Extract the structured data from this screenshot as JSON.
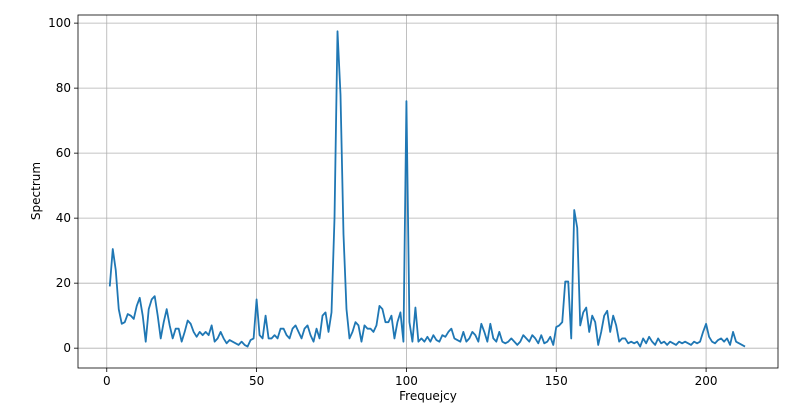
{
  "chart_data": {
    "type": "line",
    "xlabel": "Frequejcy",
    "ylabel": "Spectrum",
    "x": [
      1,
      2,
      3,
      4,
      5,
      6,
      7,
      8,
      9,
      10,
      11,
      12,
      13,
      14,
      15,
      16,
      17,
      18,
      19,
      20,
      21,
      22,
      23,
      24,
      25,
      26,
      27,
      28,
      29,
      30,
      31,
      32,
      33,
      34,
      35,
      36,
      37,
      38,
      39,
      40,
      41,
      42,
      43,
      44,
      45,
      46,
      47,
      48,
      49,
      50,
      51,
      52,
      53,
      54,
      55,
      56,
      57,
      58,
      59,
      60,
      61,
      62,
      63,
      64,
      65,
      66,
      67,
      68,
      69,
      70,
      71,
      72,
      73,
      74,
      75,
      76,
      77,
      78,
      79,
      80,
      81,
      82,
      83,
      84,
      85,
      86,
      87,
      88,
      89,
      90,
      91,
      92,
      93,
      94,
      95,
      96,
      97,
      98,
      99,
      100,
      101,
      102,
      103,
      104,
      105,
      106,
      107,
      108,
      109,
      110,
      111,
      112,
      113,
      114,
      115,
      116,
      117,
      118,
      119,
      120,
      121,
      122,
      123,
      124,
      125,
      126,
      127,
      128,
      129,
      130,
      131,
      132,
      133,
      134,
      135,
      136,
      137,
      138,
      139,
      140,
      141,
      142,
      143,
      144,
      145,
      146,
      147,
      148,
      149,
      150,
      151,
      152,
      153,
      154,
      155,
      156,
      157,
      158,
      159,
      160,
      161,
      162,
      163,
      164,
      165,
      166,
      167,
      168,
      169,
      170,
      171,
      172,
      173,
      174,
      175,
      176,
      177,
      178,
      179,
      180,
      181,
      182,
      183,
      184,
      185,
      186,
      187,
      188,
      189,
      190,
      191,
      192,
      193,
      194,
      195,
      196,
      197,
      198,
      199,
      200,
      201,
      202,
      203,
      204,
      205,
      206,
      207,
      208,
      209,
      210,
      211,
      212,
      213
    ],
    "series": [
      {
        "color": "#1f77b4",
        "values": [
          19,
          30.5,
          24,
          12,
          7.5,
          8,
          10.5,
          10,
          9,
          13,
          15.5,
          10,
          2,
          12,
          15,
          16,
          10,
          3,
          8,
          12,
          7,
          3,
          6,
          6,
          2,
          5,
          8.5,
          7.5,
          5,
          3.5,
          5,
          4,
          5,
          4,
          7,
          2,
          3,
          5,
          3,
          1.5,
          2.5,
          2,
          1.5,
          1,
          2,
          1,
          0.5,
          2.5,
          3,
          15,
          4,
          3,
          10,
          3,
          3,
          4,
          3,
          6,
          6,
          4,
          3,
          6,
          7,
          5,
          3,
          6,
          7,
          4,
          2,
          6,
          3,
          10,
          11,
          5,
          11,
          40,
          97.5,
          78,
          35,
          12,
          3,
          5,
          8,
          7,
          2,
          7,
          6,
          6,
          5,
          7,
          13,
          12,
          8,
          8,
          10,
          3,
          8,
          11,
          2,
          76,
          8,
          2,
          12.5,
          2,
          3,
          2,
          3.5,
          2,
          4,
          2.5,
          2,
          4,
          3.5,
          5,
          6,
          3,
          2.5,
          2,
          5,
          2,
          3,
          5,
          4,
          2,
          7.5,
          5,
          2,
          7.5,
          3,
          2,
          5,
          2,
          1.5,
          2,
          3,
          2,
          1,
          2,
          4,
          3,
          2,
          4,
          3,
          1.5,
          4,
          1.5,
          2,
          3.5,
          1,
          6.5,
          7,
          8,
          20.5,
          20.5,
          3,
          42.5,
          37,
          7,
          11,
          12.5,
          5,
          10,
          8,
          1,
          5,
          10,
          11.5,
          5,
          10,
          7,
          2,
          3,
          3,
          1.5,
          2,
          1.5,
          2,
          0.5,
          3,
          1.5,
          3.5,
          2,
          1,
          3,
          1.5,
          2,
          1,
          2,
          1.5,
          1,
          2,
          1.5,
          2,
          1.5,
          1,
          2,
          1.5,
          2,
          5,
          7.5,
          3.5,
          2,
          1.5,
          2.5,
          3,
          2,
          3,
          1,
          5,
          2,
          1.5,
          1,
          0.5
        ]
      }
    ],
    "xlim": [
      -9.6,
      224
    ],
    "ylim": [
      -6.1,
      102.5
    ],
    "xticks": [
      0,
      50,
      100,
      150,
      200
    ],
    "yticks": [
      0,
      20,
      40,
      60,
      80,
      100
    ],
    "grid": true
  }
}
